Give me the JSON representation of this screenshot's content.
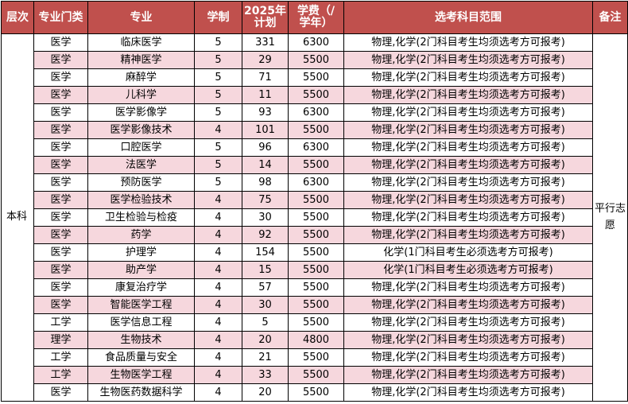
{
  "headers": {
    "level": "层次",
    "category": "专业门类",
    "major": "专业",
    "years": "学制",
    "plan_line1": "2025年",
    "plan_line2": "计划",
    "fee_line1": "学费（/",
    "fee_line2": "学年）",
    "subjects": "选考科目范围",
    "notes": "备注"
  },
  "level_value": "本科",
  "notes_value": "平行志愿",
  "colors": {
    "header_bg": "#c0504d",
    "header_text": "#ffffff",
    "shaded_row": "#f6d7dd",
    "border": "#000000"
  },
  "rows": [
    {
      "category": "医学",
      "major": "临床医学",
      "years": "5",
      "plan": "331",
      "fee": "6300",
      "subjects": "物理,化学(2门科目考生均须选考方可报考)"
    },
    {
      "category": "医学",
      "major": "精神医学",
      "years": "5",
      "plan": "29",
      "fee": "5500",
      "subjects": "物理,化学(2门科目考生均须选考方可报考)"
    },
    {
      "category": "医学",
      "major": "麻醉学",
      "years": "5",
      "plan": "71",
      "fee": "5500",
      "subjects": "物理,化学(2门科目考生均须选考方可报考)"
    },
    {
      "category": "医学",
      "major": "儿科学",
      "years": "5",
      "plan": "11",
      "fee": "5500",
      "subjects": "物理,化学(2门科目考生均须选考方可报考)"
    },
    {
      "category": "医学",
      "major": "医学影像学",
      "years": "5",
      "plan": "93",
      "fee": "6300",
      "subjects": "物理,化学(2门科目考生均须选考方可报考)"
    },
    {
      "category": "医学",
      "major": "医学影像技术",
      "years": "4",
      "plan": "101",
      "fee": "5500",
      "subjects": "物理,化学(2门科目考生均须选考方可报考)"
    },
    {
      "category": "医学",
      "major": "口腔医学",
      "years": "5",
      "plan": "96",
      "fee": "6300",
      "subjects": "物理,化学(2门科目考生均须选考方可报考)"
    },
    {
      "category": "医学",
      "major": "法医学",
      "years": "5",
      "plan": "14",
      "fee": "5500",
      "subjects": "物理,化学(2门科目考生均须选考方可报考)"
    },
    {
      "category": "医学",
      "major": "预防医学",
      "years": "5",
      "plan": "98",
      "fee": "6300",
      "subjects": "物理,化学(2门科目考生均须选考方可报考)"
    },
    {
      "category": "医学",
      "major": "医学检验技术",
      "years": "4",
      "plan": "75",
      "fee": "5500",
      "subjects": "物理,化学(2门科目考生均须选考方可报考)"
    },
    {
      "category": "医学",
      "major": "卫生检验与检疫",
      "years": "4",
      "plan": "30",
      "fee": "5500",
      "subjects": "物理,化学(2门科目考生均须选考方可报考)"
    },
    {
      "category": "医学",
      "major": "药学",
      "years": "4",
      "plan": "92",
      "fee": "5500",
      "subjects": "物理,化学(2门科目考生均须选考方可报考)"
    },
    {
      "category": "医学",
      "major": "护理学",
      "years": "4",
      "plan": "154",
      "fee": "5500",
      "subjects": "化学(1门科目考生必须选考方可报考)"
    },
    {
      "category": "医学",
      "major": "助产学",
      "years": "4",
      "plan": "15",
      "fee": "5500",
      "subjects": "化学(1门科目考生必须选考方可报考)"
    },
    {
      "category": "医学",
      "major": "康复治疗学",
      "years": "4",
      "plan": "57",
      "fee": "5500",
      "subjects": "物理,化学(2门科目考生均须选考方可报考)"
    },
    {
      "category": "医学",
      "major": "智能医学工程",
      "years": "4",
      "plan": "30",
      "fee": "5500",
      "subjects": "物理,化学(2门科目考生均须选考方可报考)"
    },
    {
      "category": "工学",
      "major": "医学信息工程",
      "years": "4",
      "plan": "5",
      "fee": "5500",
      "subjects": "物理,化学(2门科目考生均须选考方可报考)"
    },
    {
      "category": "理学",
      "major": "生物技术",
      "years": "4",
      "plan": "20",
      "fee": "4800",
      "subjects": "物理,化学(2门科目考生均须选考方可报考)"
    },
    {
      "category": "工学",
      "major": "食品质量与安全",
      "years": "4",
      "plan": "21",
      "fee": "5500",
      "subjects": "物理,化学(2门科目考生均须选考方可报考)"
    },
    {
      "category": "工学",
      "major": "生物医学工程",
      "years": "4",
      "plan": "33",
      "fee": "5500",
      "subjects": "物理,化学(2门科目考生均须选考方可报考)"
    },
    {
      "category": "医学",
      "major": "生物医药数据科学",
      "years": "4",
      "plan": "20",
      "fee": "5500",
      "subjects": "物理,化学(2门科目考生均须选考方可报考)"
    }
  ]
}
